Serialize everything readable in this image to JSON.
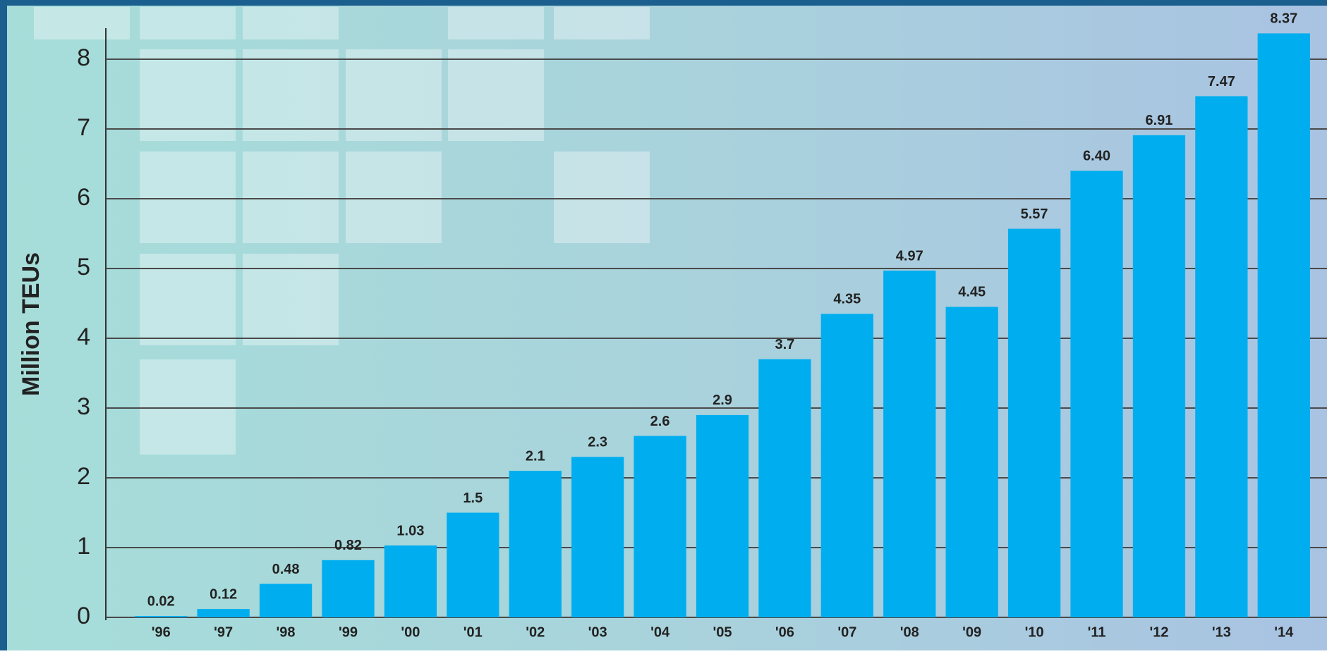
{
  "chart_data": {
    "type": "bar",
    "y_label": "Million TEUs",
    "categories": [
      "'96",
      "'97",
      "'98",
      "'99",
      "'00",
      "'01",
      "'02",
      "'03",
      "'04",
      "'05",
      "'06",
      "'07",
      "'08",
      "'09",
      "'10",
      "'11",
      "'12",
      "'13",
      "'14"
    ],
    "values": [
      0.02,
      0.12,
      0.48,
      0.82,
      1.03,
      1.5,
      2.1,
      2.3,
      2.6,
      2.9,
      3.7,
      4.35,
      4.97,
      4.45,
      5.57,
      6.4,
      6.91,
      7.47,
      8.37
    ],
    "value_labels": [
      "0.02",
      "0.12",
      "0.48",
      "0.82",
      "1.03",
      "1.5",
      "2.1",
      "2.3",
      "2.6",
      "2.9",
      "3.7",
      "4.35",
      "4.97",
      "4.45",
      "5.57",
      "6.40",
      "6.91",
      "7.47",
      "8.37"
    ],
    "color": "#00aeef",
    "ylim": [
      0,
      8.5
    ],
    "yticks": [
      0,
      1,
      2,
      3,
      4,
      5,
      6,
      7,
      8
    ],
    "grid": true
  }
}
